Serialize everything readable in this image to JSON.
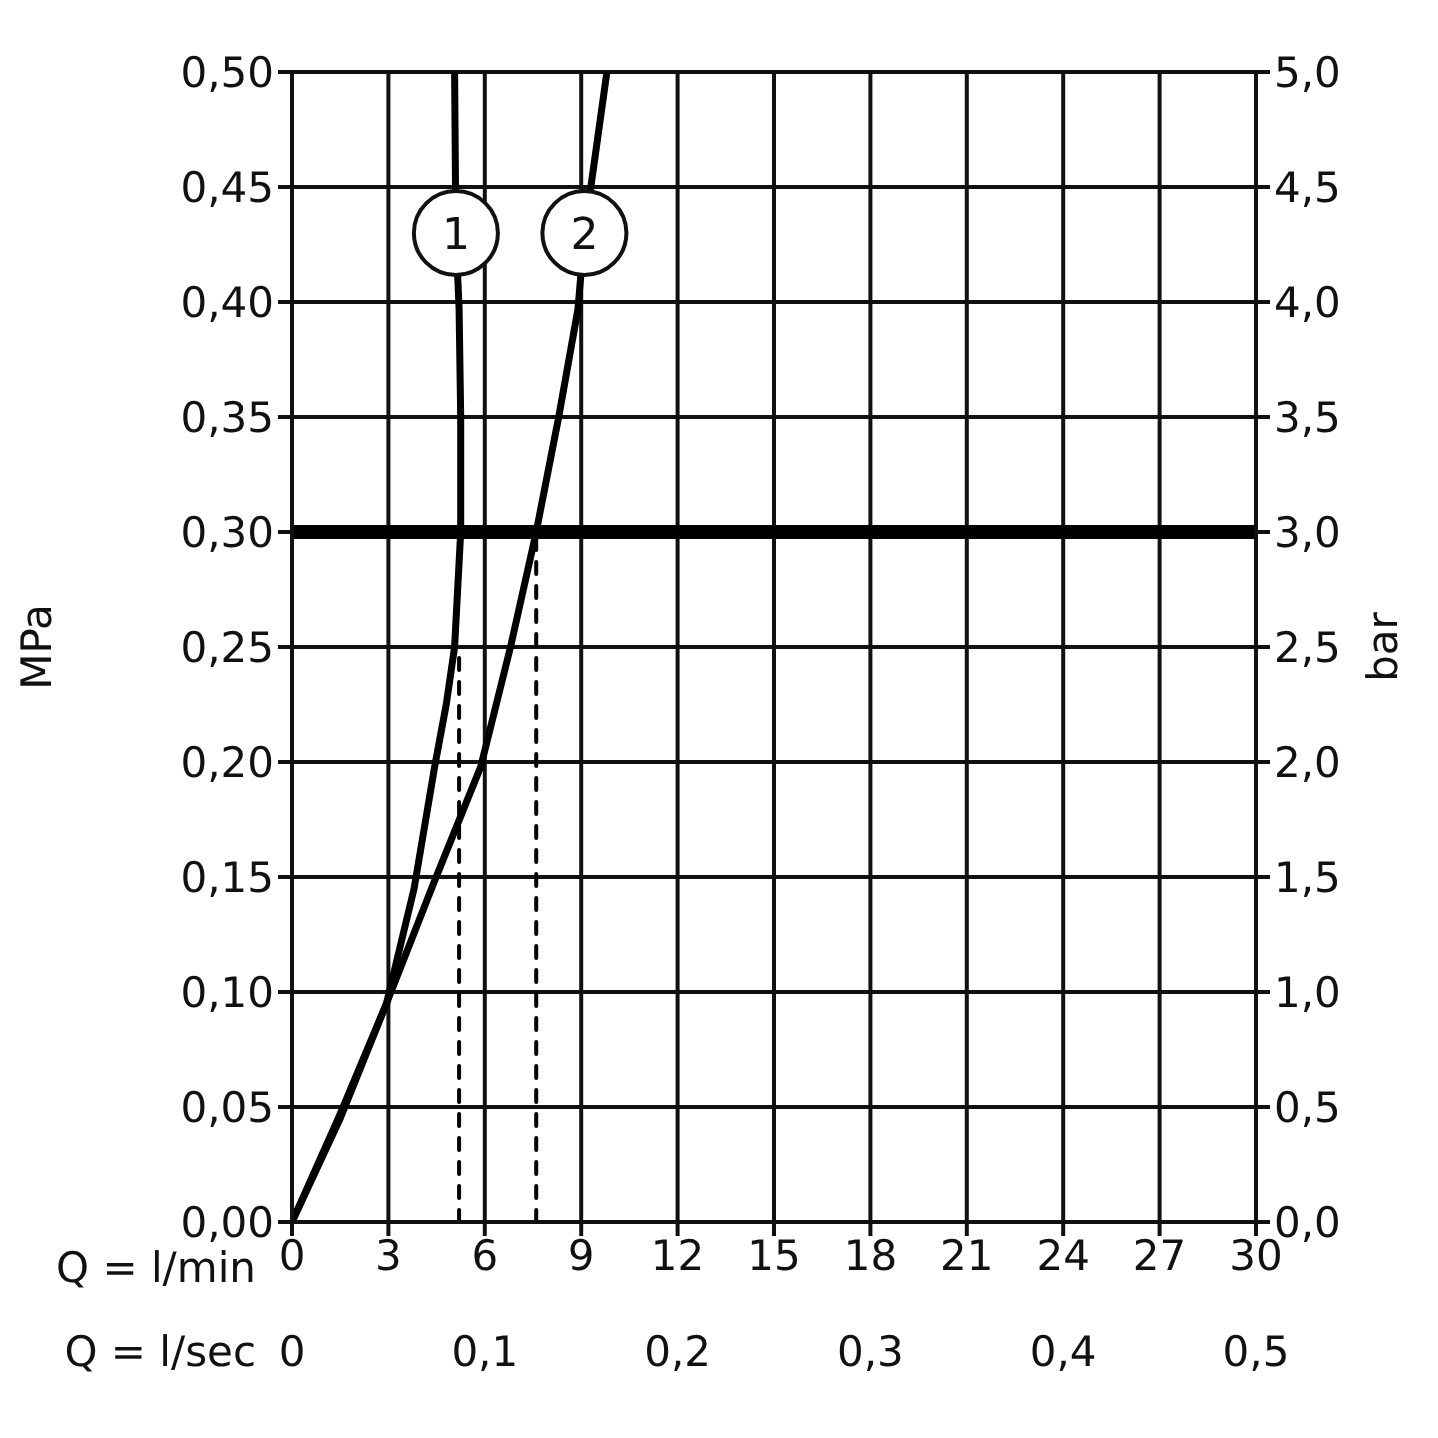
{
  "chart_data": {
    "type": "line",
    "xlabel": "Q = l/min",
    "x2label": "Q = l/sec",
    "ylabel": "MPa",
    "y2label": "bar",
    "xlim": [
      0,
      30
    ],
    "xticks": [
      0,
      3,
      6,
      9,
      12,
      15,
      18,
      21,
      24,
      27,
      30
    ],
    "x2lim": [
      0,
      0.5
    ],
    "x2ticks": [
      0,
      {
        "value": 0.1,
        "label": "0,1"
      },
      {
        "value": 0.2,
        "label": "0,2"
      },
      {
        "value": 0.3,
        "label": "0,3"
      },
      {
        "value": 0.4,
        "label": "0,4"
      },
      {
        "value": 0.5,
        "label": "0,5"
      }
    ],
    "ylim": [
      0,
      0.5
    ],
    "yticks": [
      {
        "value": 0,
        "label": "0,00"
      },
      {
        "value": 0.05,
        "label": "0,05"
      },
      {
        "value": 0.1,
        "label": "0,10"
      },
      {
        "value": 0.15,
        "label": "0,15"
      },
      {
        "value": 0.2,
        "label": "0,20"
      },
      {
        "value": 0.25,
        "label": "0,25"
      },
      {
        "value": 0.3,
        "label": "0,30"
      },
      {
        "value": 0.35,
        "label": "0,35"
      },
      {
        "value": 0.4,
        "label": "0,40"
      },
      {
        "value": 0.45,
        "label": "0,45"
      },
      {
        "value": 0.5,
        "label": "0,50"
      }
    ],
    "y2lim": [
      0,
      5
    ],
    "y2ticks": [
      {
        "value": 0,
        "label": "0,0"
      },
      {
        "value": 0.5,
        "label": "0,5"
      },
      {
        "value": 1,
        "label": "1,0"
      },
      {
        "value": 1.5,
        "label": "1,5"
      },
      {
        "value": 2,
        "label": "2,0"
      },
      {
        "value": 2.5,
        "label": "2,5"
      },
      {
        "value": 3,
        "label": "3,0"
      },
      {
        "value": 3.5,
        "label": "3,5"
      },
      {
        "value": 4,
        "label": "4,0"
      },
      {
        "value": 4.5,
        "label": "4,5"
      },
      {
        "value": 5,
        "label": "5,0"
      }
    ],
    "grid": true,
    "marker": "none",
    "ref_lines": [
      {
        "axis": "y",
        "value": 0.3,
        "color": "#000000"
      }
    ],
    "series": [
      {
        "name": "1",
        "color": "#000000",
        "line_style": "solid",
        "x": [
          0,
          1.5,
          2.94,
          3.8,
          4.44,
          4.8,
          5.06,
          5.25,
          5.25,
          5.2,
          5.1,
          5.06
        ],
        "values": [
          0,
          0.045,
          0.095,
          0.145,
          0.198,
          0.225,
          0.25,
          0.3,
          0.35,
          0.397,
          0.43,
          0.5
        ]
      },
      {
        "name": "2",
        "color": "#000000",
        "line_style": "solid",
        "x": [
          0,
          1.5,
          2.94,
          4.4,
          5.875,
          6.8,
          7.6,
          8.3,
          8.9,
          9.1,
          9.8
        ],
        "values": [
          0,
          0.047,
          0.095,
          0.147,
          0.198,
          0.25,
          0.3,
          0.35,
          0.397,
          0.43,
          0.5
        ]
      },
      {
        "color": "#000000",
        "line_style": "dashed",
        "x": [
          5.2,
          5.2
        ],
        "values": [
          0,
          0.25
        ]
      },
      {
        "color": "#000000",
        "line_style": "dashed",
        "x": [
          7.6,
          7.6
        ],
        "values": [
          0,
          0.3
        ]
      }
    ]
  }
}
